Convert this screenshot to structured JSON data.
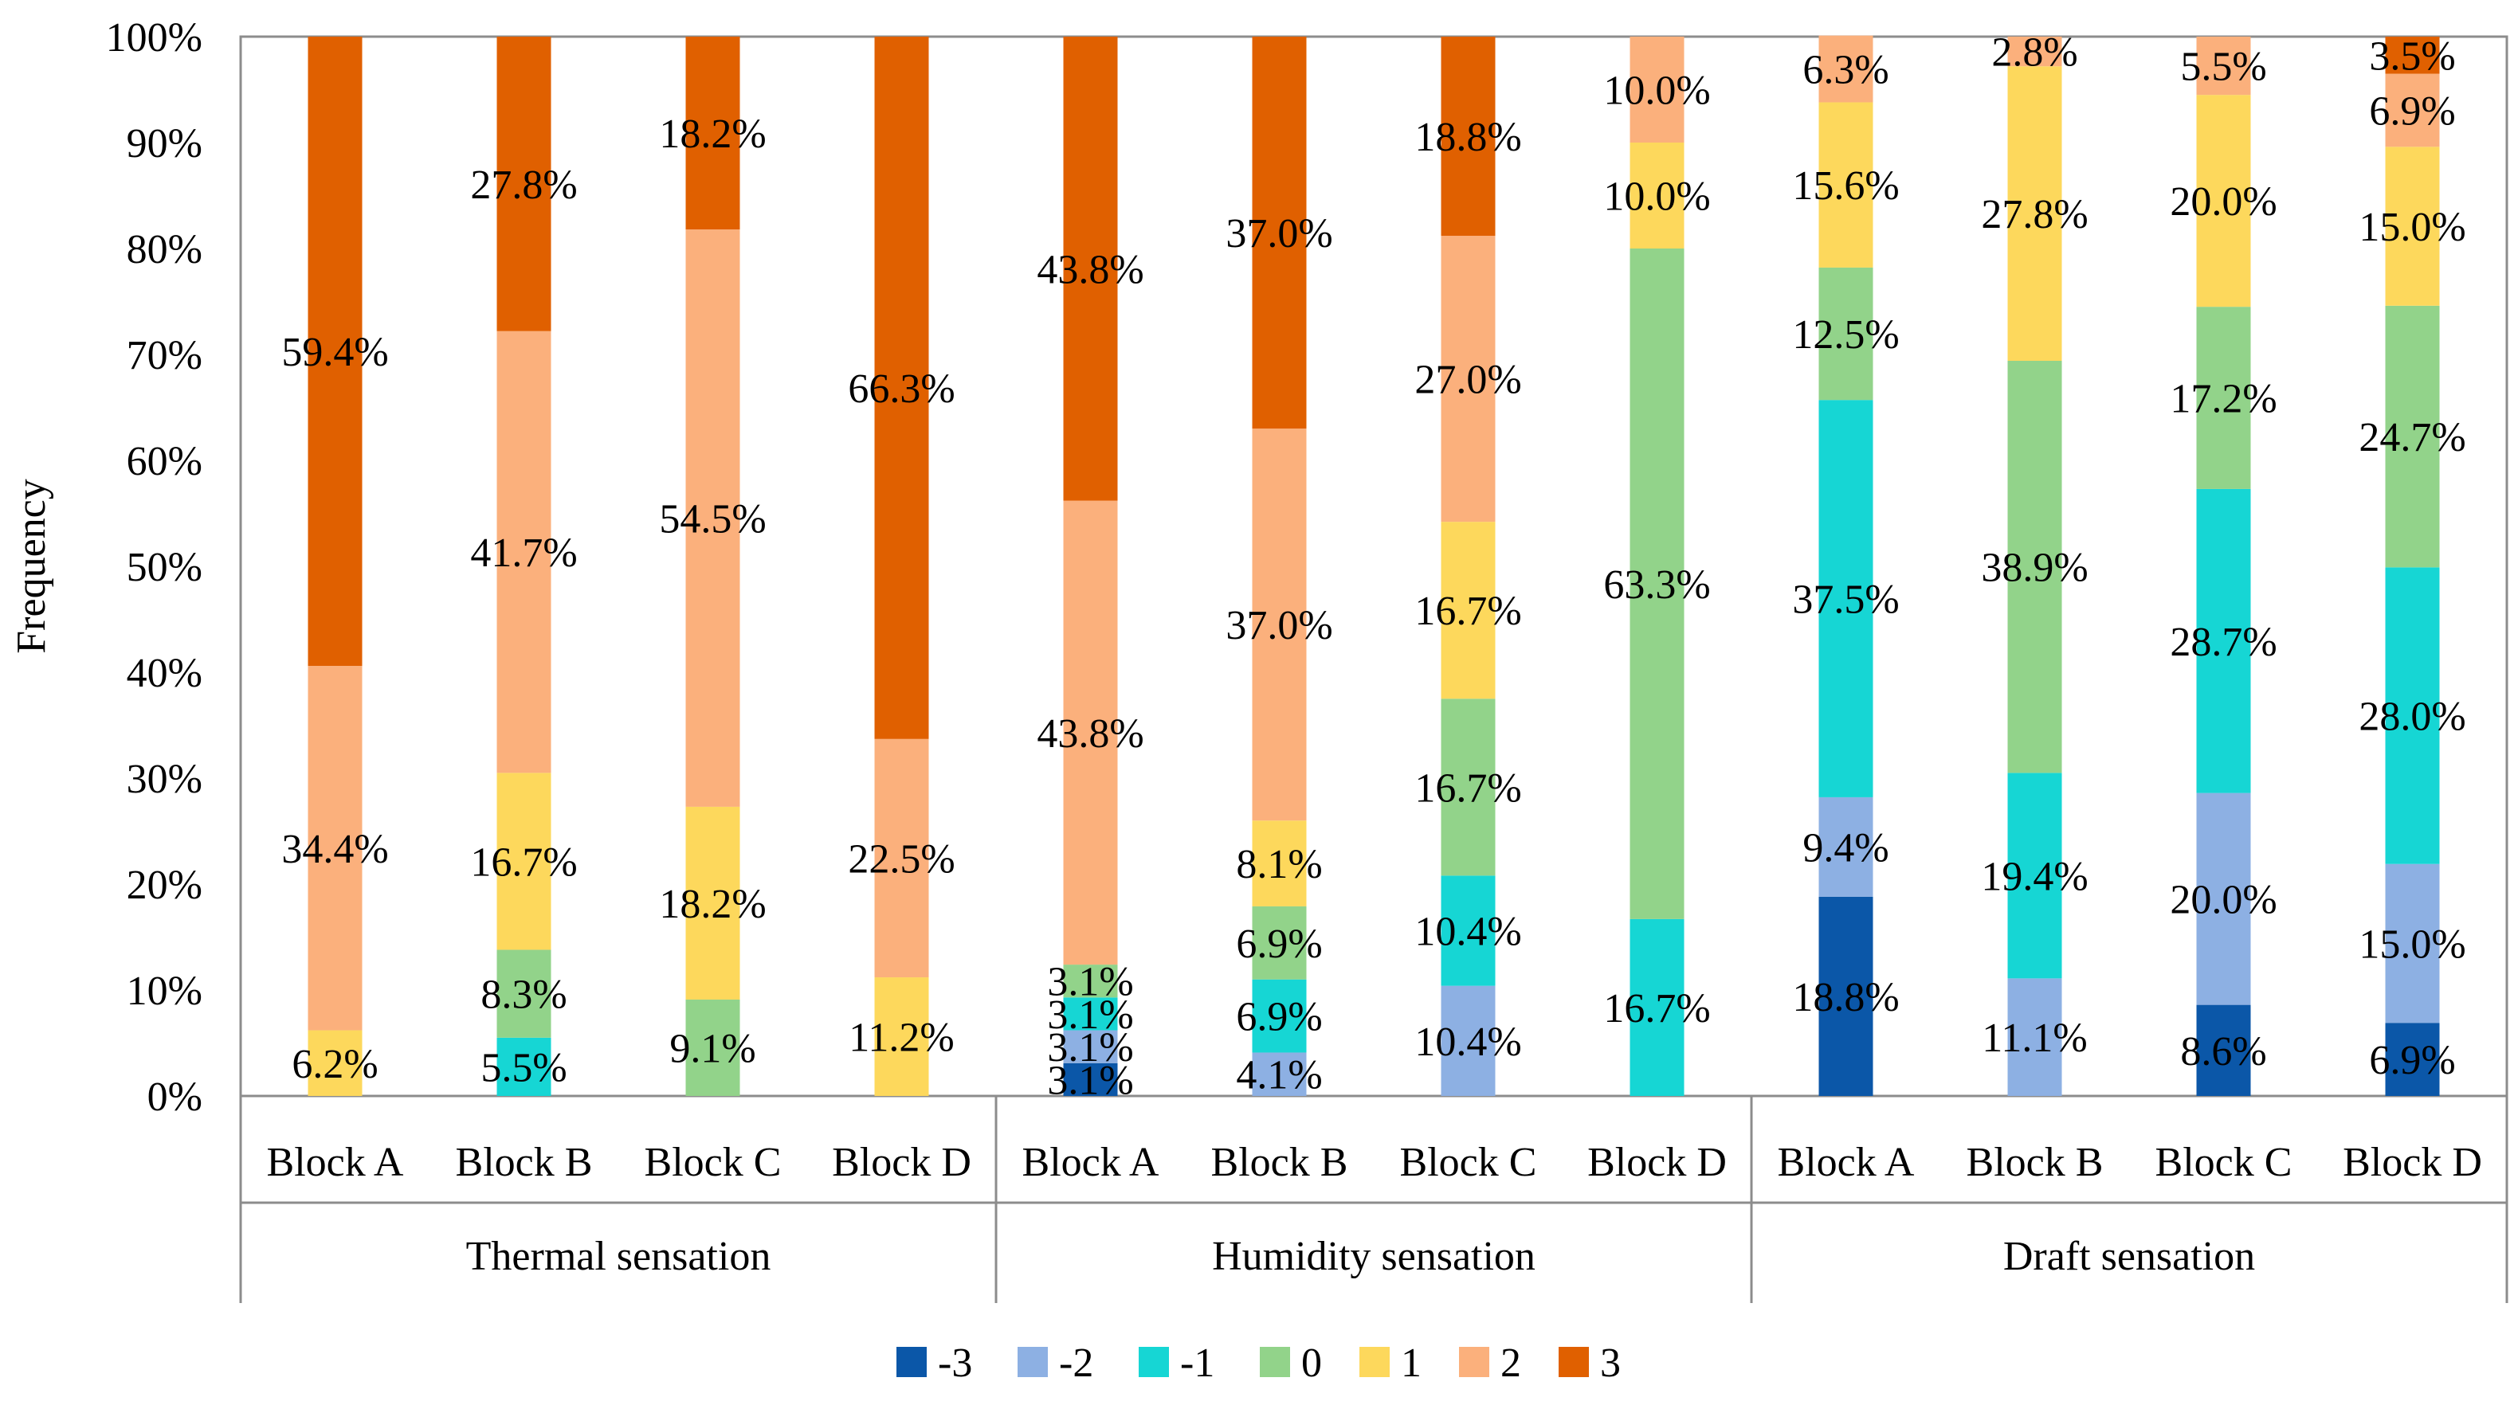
{
  "chart_data": {
    "type": "bar",
    "stacked": true,
    "ylabel": "Frequency",
    "ylim": [
      0,
      100
    ],
    "y_ticks": [
      "0%",
      "10%",
      "20%",
      "30%",
      "40%",
      "50%",
      "60%",
      "70%",
      "80%",
      "90%",
      "100%"
    ],
    "groups": [
      {
        "label": "Thermal sensation",
        "categories": [
          "Block A",
          "Block B",
          "Block C",
          "Block D"
        ]
      },
      {
        "label": "Humidity sensation",
        "categories": [
          "Block A",
          "Block B",
          "Block C",
          "Block D"
        ]
      },
      {
        "label": "Draft sensation",
        "categories": [
          "Block A",
          "Block B",
          "Block C",
          "Block D"
        ]
      }
    ],
    "series": [
      {
        "name": "-3",
        "color": "#0B57A8",
        "values": [
          0,
          0,
          0,
          0,
          3.1,
          0,
          0,
          0,
          18.8,
          0,
          8.6,
          6.9
        ]
      },
      {
        "name": "-2",
        "color": "#8DB0E3",
        "values": [
          0,
          0,
          0,
          0,
          3.1,
          4.1,
          10.4,
          0,
          9.4,
          11.1,
          20.0,
          15.0
        ]
      },
      {
        "name": "-1",
        "color": "#16D6D4",
        "values": [
          0,
          5.5,
          0,
          0,
          3.1,
          6.9,
          10.4,
          16.7,
          37.5,
          19.4,
          28.7,
          28.0
        ]
      },
      {
        "name": "0",
        "color": "#92D38A",
        "values": [
          0,
          8.3,
          9.1,
          0,
          3.1,
          6.9,
          16.7,
          63.3,
          12.5,
          38.9,
          17.2,
          24.7
        ]
      },
      {
        "name": "1",
        "color": "#FDD85C",
        "values": [
          6.2,
          16.7,
          18.2,
          11.2,
          0,
          8.1,
          16.7,
          10.0,
          15.6,
          27.8,
          20.0,
          15.0
        ]
      },
      {
        "name": "2",
        "color": "#FBB07C",
        "values": [
          34.4,
          41.7,
          54.5,
          22.5,
          43.8,
          37.0,
          27.0,
          10.0,
          6.3,
          2.8,
          5.5,
          6.9
        ]
      },
      {
        "name": "3",
        "color": "#E06000",
        "values": [
          59.4,
          27.8,
          18.2,
          66.3,
          43.8,
          37.0,
          18.8,
          0,
          0,
          0,
          0,
          3.5
        ]
      }
    ],
    "data_labels": [
      [
        "",
        "",
        "",
        "",
        "3.1%",
        "",
        "",
        "",
        "18.8%",
        "",
        "8.6%",
        "6.9%"
      ],
      [
        "",
        "",
        "",
        "",
        "3.1%",
        "4.1%",
        "10.4%",
        "",
        "9.4%",
        "11.1%",
        "20.0%",
        "15.0%"
      ],
      [
        "",
        "5.5%",
        "",
        "",
        "3.1%",
        "6.9%",
        "10.4%",
        "16.7%",
        "37.5%",
        "19.4%",
        "28.7%",
        "28.0%"
      ],
      [
        "",
        "8.3%",
        "9.1%",
        "",
        "3.1%",
        "6.9%",
        "16.7%",
        "63.3%",
        "12.5%",
        "38.9%",
        "17.2%",
        "24.7%"
      ],
      [
        "6.2%",
        "16.7%",
        "18.2%",
        "11.2%",
        "",
        "8.1%",
        "16.7%",
        "10.0%",
        "15.6%",
        "27.8%",
        "20.0%",
        "15.0%"
      ],
      [
        "34.4%",
        "41.7%",
        "54.5%",
        "22.5%",
        "43.8%",
        "37.0%",
        "27.0%",
        "10.0%",
        "6.3%",
        "2.8%",
        "5.5%",
        "6.9%"
      ],
      [
        "59.4%",
        "27.8%",
        "18.2%",
        "66.3%",
        "43.8%",
        "37.0%",
        "18.8%",
        "",
        "",
        "",
        "",
        "3.5%"
      ]
    ],
    "legend_position": "bottom",
    "grid": false
  }
}
